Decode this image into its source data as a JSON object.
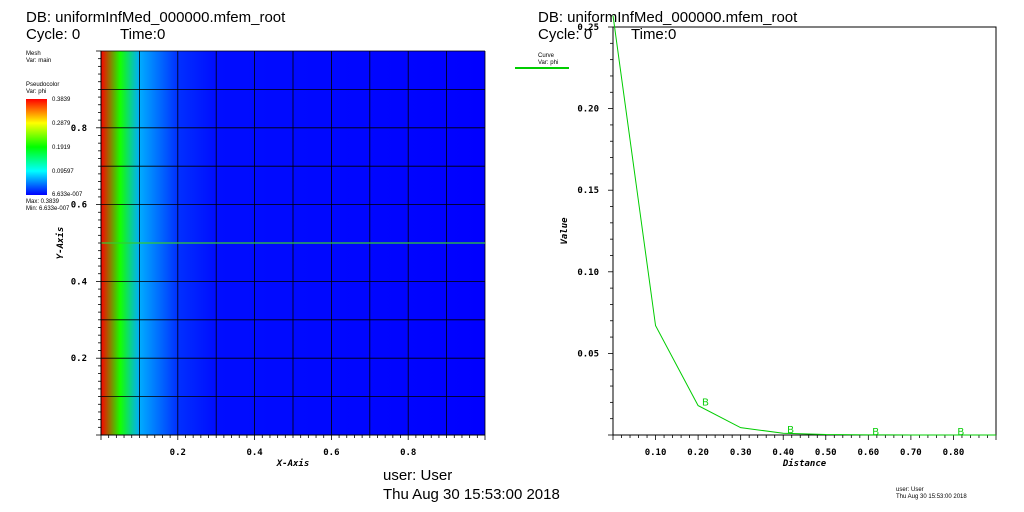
{
  "left_window": {
    "db_label": "DB: uniformInfMed_000000.mfem_root",
    "cycle_label": "Cycle: 0",
    "time_label": "Time:0",
    "mesh_legend": {
      "title": "Mesh",
      "var": "Var: main"
    },
    "pseudocolor_legend": {
      "title": "Pseudocolor",
      "var": "Var: phi",
      "ticks": [
        "0.3839",
        "0.2879",
        "0.1919",
        "0.09597",
        "6.633e-007"
      ],
      "max_label": "Max: 0.3839",
      "min_label": "Min: 6.633e-007",
      "colors": [
        "#ff0000",
        "#ffff00",
        "#00ff00",
        "#00ffff",
        "#0000ff"
      ]
    },
    "user_label": "user: User",
    "date_label": "Thu Aug 30 15:53:00 2018"
  },
  "right_window": {
    "db_label": "DB: uniformInfMed_000000.mfem_root",
    "cycle_label": "Cycle: 0",
    "time_label": "Time:0",
    "curve_legend": {
      "title": "Curve",
      "var": "Var: phi",
      "color": "#00cc00"
    },
    "user_label": "user: User",
    "date_label": "Thu Aug 30 15:53:00 2018"
  },
  "chart_data": [
    {
      "type": "heatmap",
      "xlabel": "X-Axis",
      "ylabel": "Y-Axis",
      "xlim": [
        0,
        1
      ],
      "ylim": [
        0,
        1
      ],
      "x_ticks": [
        "0.2",
        "0.4",
        "0.6",
        "0.8"
      ],
      "y_ticks": [
        "0.2",
        "0.4",
        "0.6",
        "0.8"
      ],
      "grid_divisions": 10,
      "field": "phi",
      "value_range": [
        6.633e-07,
        0.3839
      ],
      "profile_x": [
        0.0,
        0.05,
        0.1,
        0.2,
        0.3,
        1.0
      ],
      "profile_value": [
        0.3839,
        0.2,
        0.065,
        0.018,
        0.005,
        0.0
      ]
    },
    {
      "type": "line",
      "xlabel": "Distance",
      "ylabel": "Value",
      "xlim": [
        0,
        0.9
      ],
      "ylim": [
        0,
        0.25
      ],
      "x_ticks": [
        "0.10",
        "0.20",
        "0.30",
        "0.40",
        "0.50",
        "0.60",
        "0.70",
        "0.80"
      ],
      "y_ticks": [
        "0.05",
        "0.10",
        "0.15",
        "0.20",
        "0.25"
      ],
      "series": [
        {
          "color": "#00cc00",
          "marker_label": "B",
          "x": [
            0.0,
            0.1,
            0.2,
            0.3,
            0.4,
            0.5,
            0.6,
            0.7,
            0.8,
            0.9
          ],
          "y": [
            0.257,
            0.067,
            0.018,
            0.0045,
            0.0011,
            0.0003,
            0.0001,
            3e-05,
            1e-05,
            0.0
          ]
        }
      ],
      "marker_x": [
        0.2,
        0.4,
        0.6,
        0.8
      ]
    }
  ]
}
